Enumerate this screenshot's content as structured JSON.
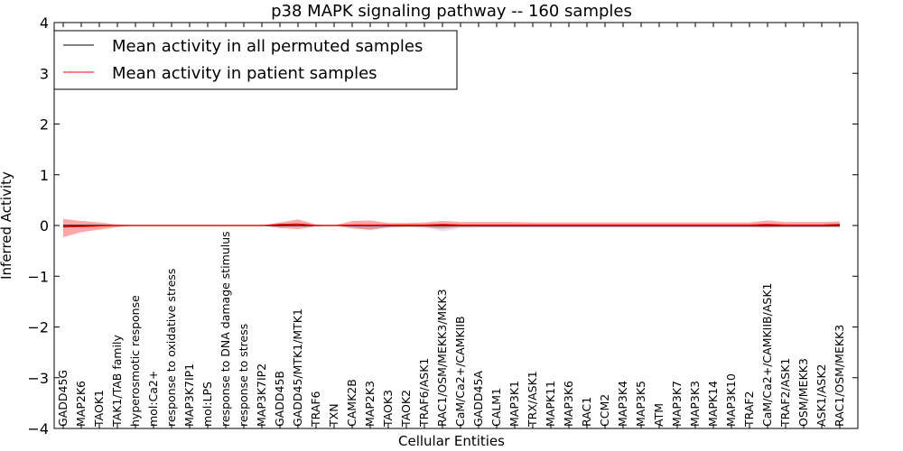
{
  "chart_data": {
    "type": "line",
    "title": "p38 MAPK signaling pathway -- 160 samples",
    "xlabel": "Cellular Entities",
    "ylabel": "Inferred Activity",
    "ylim": [
      -4,
      4
    ],
    "yticks": [
      "−4",
      "−3",
      "−2",
      "−1",
      "0",
      "1",
      "2",
      "3",
      "4"
    ],
    "yticks_values": [
      -4,
      -3,
      -2,
      -1,
      0,
      1,
      2,
      3,
      4
    ],
    "categories": [
      "GADD45G",
      "MAP2K6",
      "TAOK1",
      "TAK1/TAB family",
      "hyperosmotic response",
      "mol:Ca2+",
      "response to oxidative stress",
      "MAP3K7IP1",
      "mol:LPS",
      "response to DNA damage stimulus",
      "response to stress",
      "MAP3K7IP2",
      "GADD45B",
      "GADD45/MTK1/MTK1",
      "TRAF6",
      "TXN",
      "CAMK2B",
      "MAP2K3",
      "TAOK3",
      "TAOK2",
      "TRAF6/ASK1",
      "RAC1/OSM/MEKK3/MKK3",
      "CaM/Ca2+/CAMKIIB",
      "GADD45A",
      "CALM1",
      "MAP3K1",
      "TRX/ASK1",
      "MAPK11",
      "MAP3K6",
      "RAC1",
      "CCM2",
      "MAP3K4",
      "MAP3K5",
      "ATM",
      "MAP3K7",
      "MAP3K3",
      "MAPK14",
      "MAP3K10",
      "TRAF2",
      "CaM/Ca2+/CAMKIIB/ASK1",
      "TRAF2/ASK1",
      "OSM/MEKK3",
      "ASK1/ASK2",
      "RAC1/OSM/MEKK3"
    ],
    "series": [
      {
        "name": "Mean activity in all permuted samples",
        "color": "#000000",
        "values": [
          0.0,
          0.0,
          0.0,
          0.0,
          0.0,
          0.0,
          0.0,
          0.0,
          0.0,
          0.0,
          0.0,
          0.0,
          0.0,
          0.0,
          0.0,
          0.0,
          0.0,
          0.0,
          0.0,
          0.0,
          0.0,
          0.0,
          0.0,
          0.0,
          0.0,
          0.0,
          0.0,
          0.0,
          0.0,
          0.0,
          0.0,
          0.0,
          0.0,
          0.0,
          0.0,
          0.0,
          0.0,
          0.0,
          0.0,
          0.0,
          0.0,
          0.0,
          0.0,
          0.0
        ],
        "band_upper": [
          0.02,
          0.01,
          0.0,
          0.0,
          0.0,
          0.0,
          0.0,
          0.0,
          0.0,
          0.0,
          0.0,
          0.0,
          0.0,
          0.0,
          0.0,
          0.0,
          0.0,
          0.0,
          0.0,
          0.0,
          0.0,
          0.0,
          0.0,
          0.0,
          0.0,
          0.0,
          0.0,
          0.0,
          0.0,
          0.0,
          0.0,
          0.0,
          0.0,
          0.0,
          0.0,
          0.0,
          0.0,
          0.0,
          0.0,
          0.0,
          0.0,
          0.0,
          0.0,
          0.0
        ],
        "band_lower": [
          -0.02,
          -0.01,
          0.0,
          0.0,
          0.0,
          0.0,
          0.0,
          0.0,
          0.0,
          0.0,
          0.0,
          0.0,
          0.0,
          0.0,
          0.0,
          0.0,
          -0.03,
          -0.1,
          -0.03,
          0.0,
          -0.02,
          -0.12,
          -0.05,
          -0.04,
          -0.04,
          -0.04,
          -0.04,
          -0.04,
          -0.04,
          -0.04,
          -0.04,
          -0.04,
          -0.04,
          -0.04,
          -0.04,
          -0.04,
          -0.04,
          -0.04,
          -0.04,
          -0.04,
          -0.04,
          -0.04,
          -0.04,
          -0.04
        ]
      },
      {
        "name": "Mean activity in patient samples",
        "color": "#ff0000",
        "values": [
          -0.03,
          -0.02,
          -0.01,
          0.0,
          0.0,
          0.0,
          0.0,
          0.0,
          0.0,
          0.0,
          0.0,
          0.0,
          0.02,
          0.03,
          0.0,
          0.0,
          0.01,
          0.01,
          0.01,
          0.01,
          0.01,
          0.02,
          0.01,
          0.01,
          0.01,
          0.01,
          0.01,
          0.01,
          0.01,
          0.01,
          0.01,
          0.01,
          0.01,
          0.01,
          0.01,
          0.01,
          0.01,
          0.01,
          0.01,
          0.02,
          0.01,
          0.01,
          0.01,
          0.02
        ],
        "band_upper": [
          0.13,
          0.09,
          0.06,
          0.02,
          0.0,
          0.0,
          0.0,
          0.0,
          0.0,
          0.0,
          0.0,
          0.0,
          0.06,
          0.12,
          0.02,
          0.0,
          0.09,
          0.1,
          0.05,
          0.05,
          0.06,
          0.09,
          0.07,
          0.07,
          0.07,
          0.07,
          0.06,
          0.06,
          0.06,
          0.06,
          0.06,
          0.06,
          0.06,
          0.06,
          0.06,
          0.06,
          0.06,
          0.06,
          0.06,
          0.1,
          0.07,
          0.07,
          0.07,
          0.08
        ],
        "band_lower": [
          -0.23,
          -0.13,
          -0.08,
          -0.03,
          0.0,
          0.0,
          0.0,
          0.0,
          0.0,
          0.0,
          0.0,
          0.0,
          -0.05,
          -0.07,
          -0.02,
          0.0,
          -0.06,
          -0.08,
          -0.04,
          -0.03,
          -0.04,
          -0.06,
          -0.03,
          -0.03,
          -0.03,
          -0.03,
          -0.03,
          -0.03,
          -0.03,
          -0.03,
          -0.03,
          -0.03,
          -0.03,
          -0.03,
          -0.03,
          -0.03,
          -0.03,
          -0.03,
          -0.03,
          -0.04,
          -0.03,
          -0.03,
          -0.03,
          -0.03
        ]
      }
    ],
    "legend_position": "top-left",
    "grid": false
  }
}
